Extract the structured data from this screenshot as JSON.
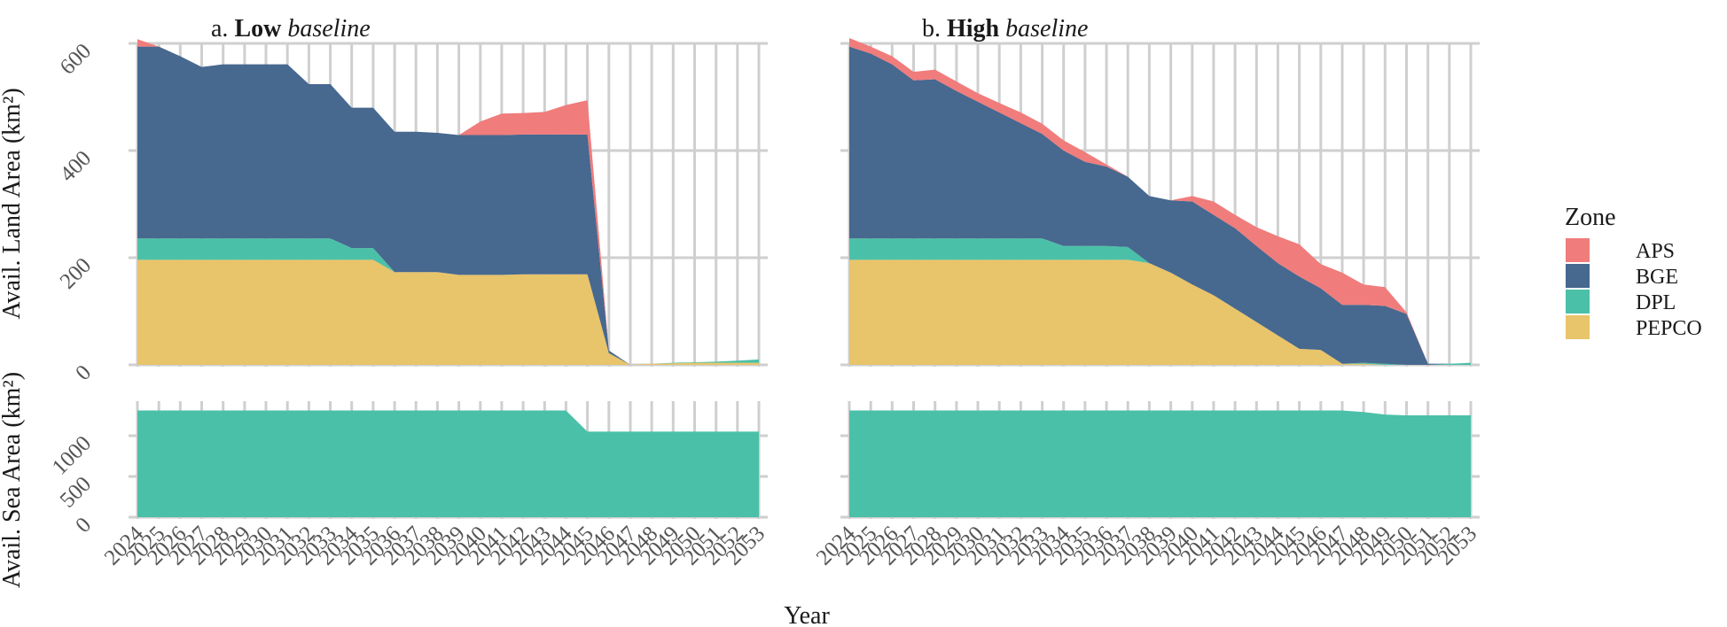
{
  "chart_data": {
    "type": "area",
    "stacked": true,
    "years": [
      2024,
      2025,
      2026,
      2027,
      2028,
      2029,
      2030,
      2031,
      2032,
      2033,
      2034,
      2035,
      2036,
      2037,
      2038,
      2039,
      2040,
      2041,
      2042,
      2043,
      2044,
      2045,
      2046,
      2047,
      2048,
      2049,
      2050,
      2051,
      2052,
      2053
    ],
    "zone_colors": {
      "APS": "#F07C7C",
      "BGE": "#47688F",
      "DPL": "#4BC0A8",
      "PEPCO": "#E8C46A"
    },
    "xlabel": "Year",
    "ylabel_land": "Avail. Land Area (km²)",
    "ylabel_sea": "Avail. Sea Area (km²)",
    "land_ylim": [
      0,
      610
    ],
    "land_yticks": [
      0,
      200,
      400,
      600
    ],
    "sea_ylim": [
      0,
      1320
    ],
    "sea_yticks": [
      0,
      500,
      1000
    ],
    "legend": {
      "title": "Zone",
      "entries": [
        "APS",
        "BGE",
        "DPL",
        "PEPCO"
      ],
      "position": "right"
    },
    "panels": [
      {
        "id": "low",
        "title_prefix": "a. ",
        "title_bold": "Low",
        "title_italic": " baseline",
        "land_series": [
          {
            "name": "PEPCO",
            "values": [
              196,
              196,
              196,
              196,
              196,
              196,
              196,
              196,
              196,
              196,
              196,
              196,
              173,
              173,
              173,
              168,
              168,
              168,
              169,
              169,
              169,
              169,
              22,
              0,
              2,
              3,
              4,
              4,
              4,
              4
            ]
          },
          {
            "name": "DPL",
            "values": [
              40,
              40,
              40,
              40,
              40,
              40,
              40,
              40,
              40,
              40,
              22,
              22,
              0,
              0,
              0,
              0,
              0,
              0,
              0,
              0,
              0,
              0,
              0,
              0,
              0,
              1,
              1,
              2,
              4,
              6
            ]
          },
          {
            "name": "BGE",
            "values": [
              358,
              358,
              340,
              320,
              325,
              325,
              325,
              325,
              288,
              288,
              262,
              262,
              262,
              262,
              260,
              261,
              261,
              261,
              261,
              261,
              261,
              261,
              5,
              0,
              0,
              0,
              0,
              0,
              0,
              0
            ]
          },
          {
            "name": "APS",
            "values": [
              14,
              0,
              0,
              0,
              0,
              0,
              0,
              0,
              0,
              0,
              0,
              0,
              0,
              0,
              0,
              0,
              25,
              40,
              40,
              42,
              55,
              64,
              0,
              0,
              0,
              0,
              0,
              0,
              0,
              0
            ]
          }
        ],
        "sea_values": [
          1310,
          1310,
          1310,
          1310,
          1310,
          1310,
          1310,
          1310,
          1310,
          1310,
          1310,
          1310,
          1310,
          1310,
          1310,
          1310,
          1310,
          1310,
          1310,
          1310,
          1310,
          1050,
          1050,
          1050,
          1050,
          1050,
          1050,
          1050,
          1050,
          1050
        ]
      },
      {
        "id": "high",
        "title_prefix": "b. ",
        "title_bold": "High",
        "title_italic": " baseline",
        "land_series": [
          {
            "name": "PEPCO",
            "values": [
              196,
              196,
              196,
              196,
              196,
              196,
              196,
              196,
              196,
              196,
              196,
              196,
              196,
              196,
              190,
              172,
              150,
              130,
              105,
              80,
              55,
              30,
              28,
              2,
              2,
              0,
              0,
              0,
              0,
              0
            ]
          },
          {
            "name": "DPL",
            "values": [
              40,
              40,
              40,
              40,
              40,
              40,
              40,
              40,
              40,
              40,
              26,
              26,
              26,
              24,
              0,
              0,
              0,
              0,
              0,
              0,
              0,
              0,
              0,
              0,
              2,
              2,
              0,
              0,
              2,
              4
            ]
          },
          {
            "name": "BGE",
            "values": [
              358,
              345,
              325,
              295,
              297,
              275,
              255,
              235,
              215,
              195,
              178,
              157,
              148,
              131,
              125,
              135,
              155,
              150,
              150,
              142,
              135,
              135,
              115,
              110,
              108,
              108,
              95,
              2,
              0,
              0
            ]
          },
          {
            "name": "APS",
            "values": [
              16,
              13,
              15,
              16,
              18,
              18,
              16,
              18,
              20,
              19,
              19,
              18,
              4,
              0,
              0,
              0,
              10,
              25,
              25,
              35,
              50,
              60,
              45,
              60,
              38,
              35,
              3,
              0,
              0,
              0
            ]
          }
        ],
        "sea_values": [
          1310,
          1310,
          1310,
          1310,
          1310,
          1310,
          1310,
          1310,
          1310,
          1310,
          1310,
          1310,
          1310,
          1310,
          1310,
          1310,
          1310,
          1310,
          1310,
          1310,
          1310,
          1310,
          1310,
          1310,
          1290,
          1260,
          1250,
          1250,
          1250,
          1250
        ]
      }
    ]
  }
}
